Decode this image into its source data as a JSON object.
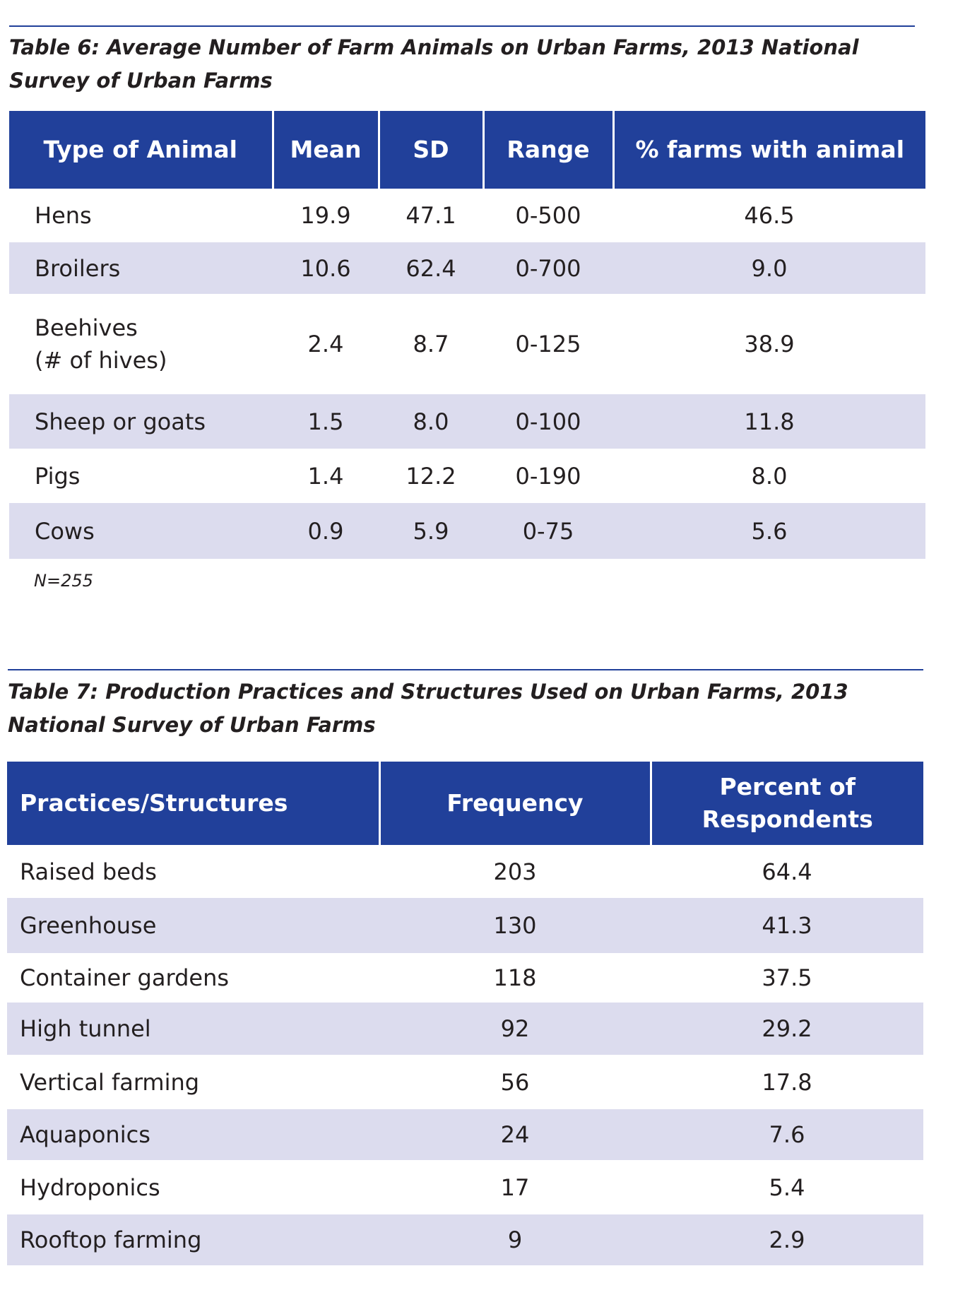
{
  "table6": {
    "caption": "Table 6: Average Number of Farm Animals on Urban Farms, 2013 National Survey of Urban Farms",
    "headers": [
      "Type of Animal",
      "Mean",
      "SD",
      "Range",
      "% farms with animal"
    ],
    "rows": [
      [
        "Hens",
        "19.9",
        "47.1",
        "0-500",
        "46.5"
      ],
      [
        "Broilers",
        "10.6",
        "62.4",
        "0-700",
        "9.0"
      ],
      [
        "Beehives\n(# of hives)",
        "2.4",
        "8.7",
        "0-125",
        "38.9"
      ],
      [
        "Sheep or goats",
        "1.5",
        "8.0",
        "0-100",
        "11.8"
      ],
      [
        "Pigs",
        "1.4",
        "12.2",
        "0-190",
        "8.0"
      ],
      [
        "Cows",
        "0.9",
        "5.9",
        "0-75",
        "5.6"
      ]
    ],
    "note": "N=255"
  },
  "table7": {
    "caption": "Table 7: Production Practices and Structures Used on Urban Farms, 2013 National Survey of Urban Farms",
    "headers": [
      "Practices/Structures",
      "Frequency",
      "Percent of Respondents"
    ],
    "rows": [
      [
        "Raised beds",
        "203",
        "64.4"
      ],
      [
        "Greenhouse",
        "130",
        "41.3"
      ],
      [
        "Container gardens",
        "118",
        "37.5"
      ],
      [
        "High tunnel",
        "92",
        "29.2"
      ],
      [
        "Vertical farming",
        "56",
        "17.8"
      ],
      [
        "Aquaponics",
        "24",
        "7.6"
      ],
      [
        "Hydroponics",
        "17",
        "5.4"
      ],
      [
        "Rooftop farming",
        "9",
        "2.9"
      ]
    ]
  }
}
